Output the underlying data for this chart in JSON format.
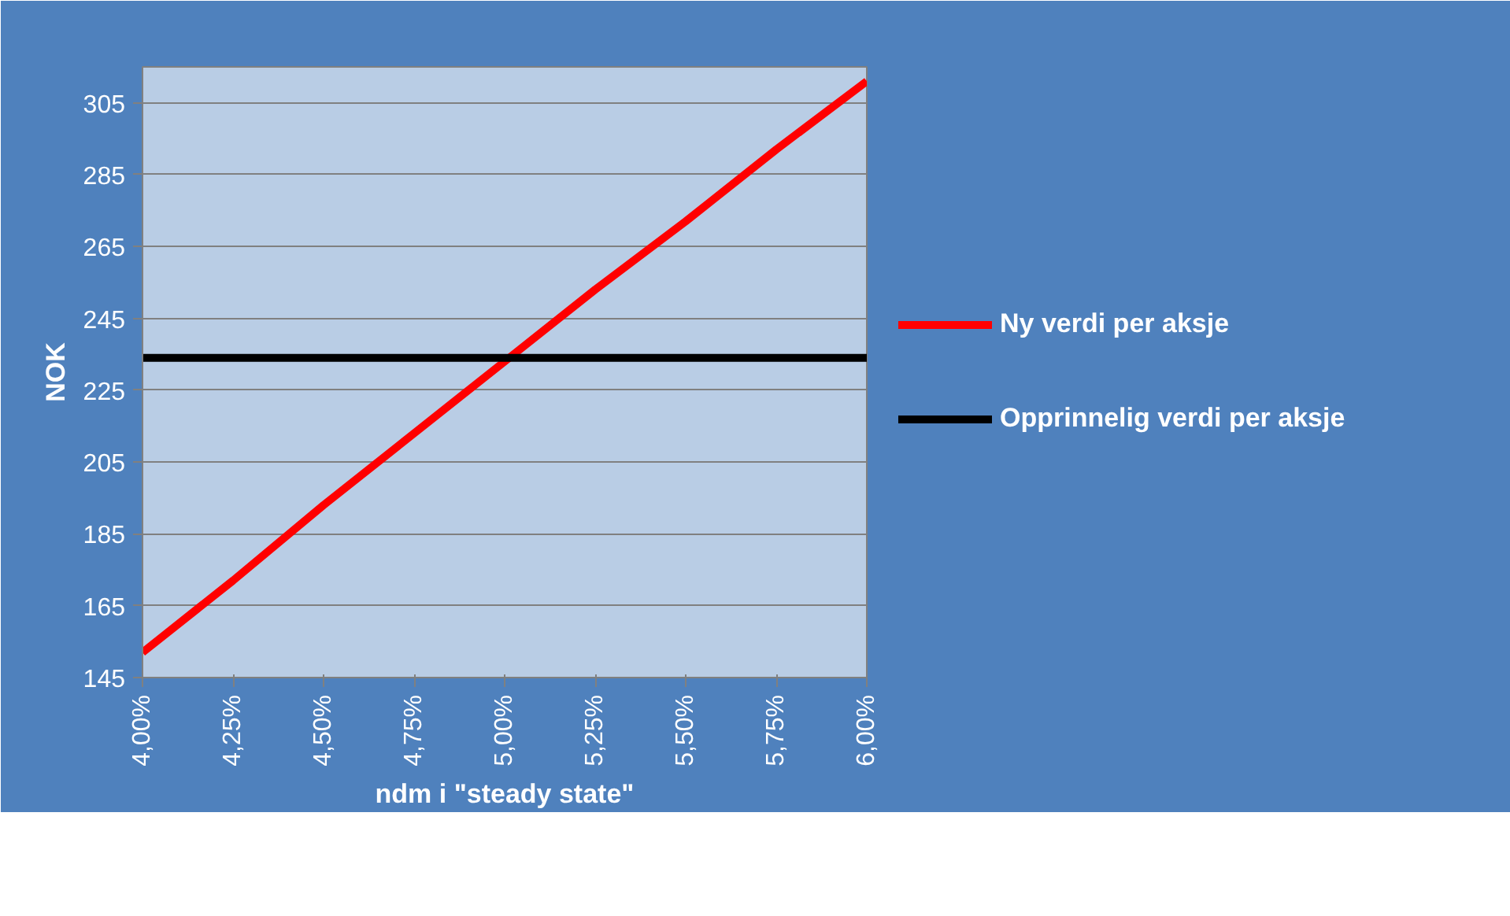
{
  "chart_data": {
    "type": "line",
    "xlabel": "ndm i \"steady state\"",
    "ylabel": "NOK",
    "x": [
      4.0,
      4.25,
      4.5,
      4.75,
      5.0,
      5.25,
      5.5,
      5.75,
      6.0
    ],
    "series": [
      {
        "name": "Ny verdi per aksje",
        "color": "#ff0000",
        "values": [
          152,
          172,
          193,
          213,
          233,
          253,
          272,
          292,
          311
        ]
      },
      {
        "name": "Opprinnelig verdi per aksje",
        "color": "#000000",
        "values": [
          234,
          234,
          234,
          234,
          234,
          234,
          234,
          234,
          234
        ]
      }
    ],
    "xlim": [
      4.0,
      6.0
    ],
    "ylim": [
      145,
      315
    ],
    "xticks": [
      {
        "value": 4.0,
        "label": "4,00%"
      },
      {
        "value": 4.25,
        "label": "4,25%"
      },
      {
        "value": 4.5,
        "label": "4,50%"
      },
      {
        "value": 4.75,
        "label": "4,75%"
      },
      {
        "value": 5.0,
        "label": "5,00%"
      },
      {
        "value": 5.25,
        "label": "5,25%"
      },
      {
        "value": 5.5,
        "label": "5,50%"
      },
      {
        "value": 5.75,
        "label": "5,75%"
      },
      {
        "value": 6.0,
        "label": "6,00%"
      }
    ],
    "yticks": [
      145,
      165,
      185,
      205,
      225,
      245,
      265,
      285,
      305
    ],
    "grid": "y",
    "legend": "right",
    "marker": "none",
    "line_style": "solid"
  }
}
